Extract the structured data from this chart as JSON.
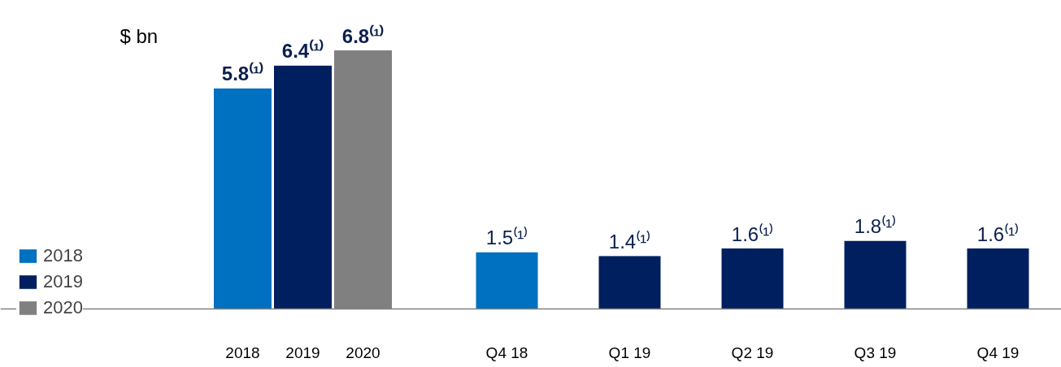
{
  "chart_data": {
    "type": "bar",
    "ylabel": "$ bn",
    "categories": [
      "2018",
      "2019",
      "2020",
      "Q4 18",
      "Q1 19",
      "Q2 19",
      "Q3 19",
      "Q4 19"
    ],
    "series": [
      {
        "name": "2018",
        "color": "#0070c0",
        "values": [
          5.8,
          null,
          null,
          1.5,
          null,
          null,
          null,
          null
        ],
        "value_labels": [
          "5.8⁽¹⁾",
          null,
          null,
          "1.5⁽¹⁾",
          null,
          null,
          null,
          null
        ]
      },
      {
        "name": "2019",
        "color": "#001f5f",
        "values": [
          null,
          6.4,
          null,
          null,
          1.4,
          1.6,
          1.8,
          1.6
        ],
        "value_labels": [
          null,
          "6.4⁽¹⁾",
          null,
          null,
          "1.4⁽¹⁾",
          "1.6⁽¹⁾",
          "1.8⁽¹⁾",
          "1.6⁽¹⁾"
        ]
      },
      {
        "name": "2020",
        "color": "#808080",
        "values": [
          null,
          null,
          6.8,
          null,
          null,
          null,
          null,
          null
        ],
        "value_labels": [
          null,
          null,
          "6.8⁽¹⁾",
          null,
          null,
          null,
          null,
          null
        ]
      }
    ],
    "legend": "bottom left",
    "grid": false
  }
}
